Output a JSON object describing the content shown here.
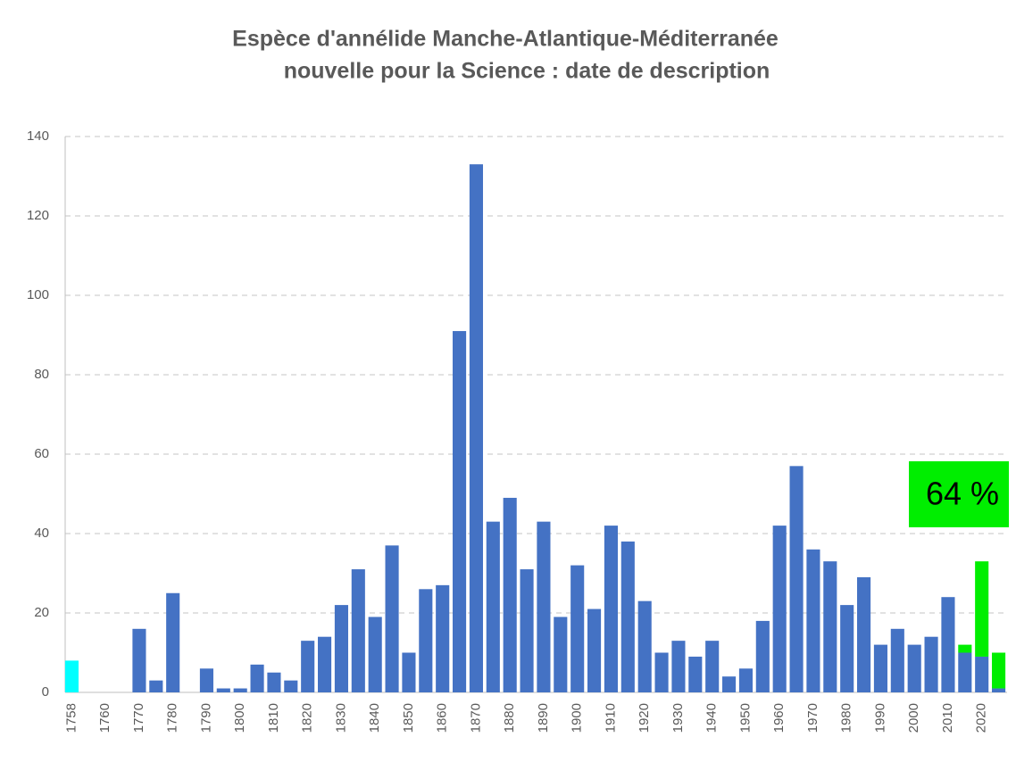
{
  "chart_data": {
    "type": "bar",
    "stacked": true,
    "title": [
      "Espèce d'annélide Manche-Atlantique-Méditerranée",
      "nouvelle pour la Science : date de description"
    ],
    "categories": [
      "1758",
      null,
      "1760",
      null,
      "1770",
      null,
      "1780",
      null,
      "1790",
      null,
      "1800",
      null,
      "1810",
      null,
      "1820",
      null,
      "1830",
      null,
      "1840",
      null,
      "1850",
      null,
      "1860",
      null,
      "1870",
      null,
      "1880",
      null,
      "1890",
      null,
      "1900",
      null,
      "1910",
      null,
      "1920",
      null,
      "1930",
      null,
      "1940",
      null,
      "1950",
      null,
      "1960",
      null,
      "1970",
      null,
      "1980",
      null,
      "1990",
      null,
      "2000",
      null,
      "2010",
      null,
      "2020",
      null
    ],
    "series": [
      {
        "color": "#00ffff",
        "values": [
          8,
          null,
          null,
          null,
          null,
          null,
          null,
          null,
          null,
          null,
          null,
          null,
          null,
          null,
          null,
          null,
          null,
          null,
          null,
          null,
          null,
          null,
          null,
          null,
          null,
          null,
          null,
          null,
          null,
          null,
          null,
          null,
          null,
          null,
          null,
          null,
          null,
          null,
          null,
          null,
          null,
          null,
          null,
          null,
          null,
          null,
          null,
          null,
          null,
          null,
          null,
          null,
          null,
          null,
          null,
          null
        ]
      },
      {
        "color": "#4472c4",
        "values": [
          null,
          0,
          0,
          0,
          16,
          3,
          25,
          0,
          6,
          1,
          1,
          7,
          5,
          3,
          13,
          14,
          22,
          31,
          19,
          37,
          10,
          26,
          27,
          91,
          133,
          43,
          49,
          31,
          43,
          19,
          32,
          21,
          42,
          38,
          23,
          10,
          13,
          9,
          13,
          4,
          6,
          18,
          42,
          57,
          36,
          33,
          22,
          29,
          12,
          16,
          12,
          14,
          24,
          10,
          9,
          1
        ]
      },
      {
        "color": "#00ee00",
        "values": [
          null,
          null,
          null,
          null,
          null,
          null,
          null,
          null,
          null,
          null,
          null,
          null,
          null,
          null,
          null,
          null,
          null,
          null,
          null,
          null,
          null,
          null,
          null,
          null,
          null,
          null,
          null,
          null,
          null,
          null,
          null,
          null,
          null,
          null,
          null,
          null,
          null,
          null,
          null,
          null,
          null,
          null,
          null,
          null,
          null,
          null,
          null,
          null,
          null,
          null,
          null,
          null,
          null,
          2,
          24,
          9
        ]
      }
    ],
    "annotation": {
      "text": "64 %",
      "color": "#00ee00"
    },
    "ylim": [
      0,
      140
    ],
    "yticks": [
      0,
      20,
      40,
      60,
      80,
      100,
      120,
      140
    ],
    "grid": true
  }
}
